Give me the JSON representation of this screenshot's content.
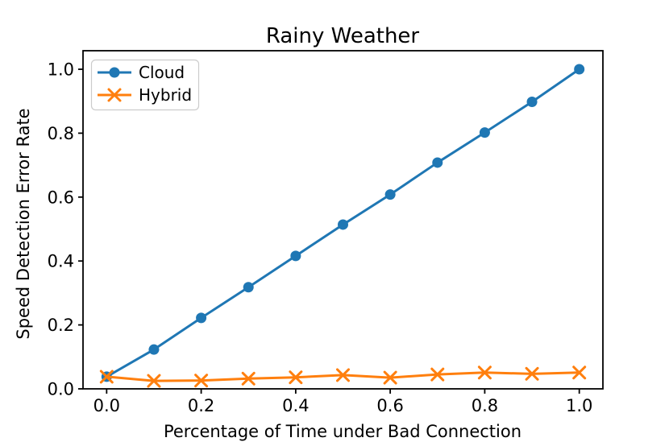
{
  "chart_data": {
    "type": "line",
    "title": "Rainy Weather",
    "xlabel": "Percentage of Time under Bad Connection",
    "ylabel": "Speed Detection Error Rate",
    "x": [
      0.0,
      0.1,
      0.2,
      0.3,
      0.4,
      0.5,
      0.6,
      0.7,
      0.8,
      0.9,
      1.0
    ],
    "series": [
      {
        "name": "Cloud",
        "color": "#1f77b4",
        "marker": "circle",
        "values": [
          0.038,
          0.123,
          0.222,
          0.318,
          0.416,
          0.514,
          0.608,
          0.708,
          0.802,
          0.898,
          1.0
        ]
      },
      {
        "name": "Hybrid",
        "color": "#ff7f0e",
        "marker": "x",
        "values": [
          0.038,
          0.025,
          0.026,
          0.032,
          0.036,
          0.043,
          0.035,
          0.045,
          0.051,
          0.047,
          0.051
        ]
      }
    ],
    "xlim": [
      -0.05,
      1.05
    ],
    "ylim": [
      0,
      1.058
    ],
    "xtick_labels": [
      "0.0",
      "0.2",
      "0.4",
      "0.6",
      "0.8",
      "1.0"
    ],
    "ytick_labels": [
      "0.0",
      "0.2",
      "0.4",
      "0.6",
      "0.8",
      "1.0"
    ],
    "grid": false,
    "legend_position": "upper left",
    "background_color": "#ffffff",
    "text_color": "#000000"
  }
}
